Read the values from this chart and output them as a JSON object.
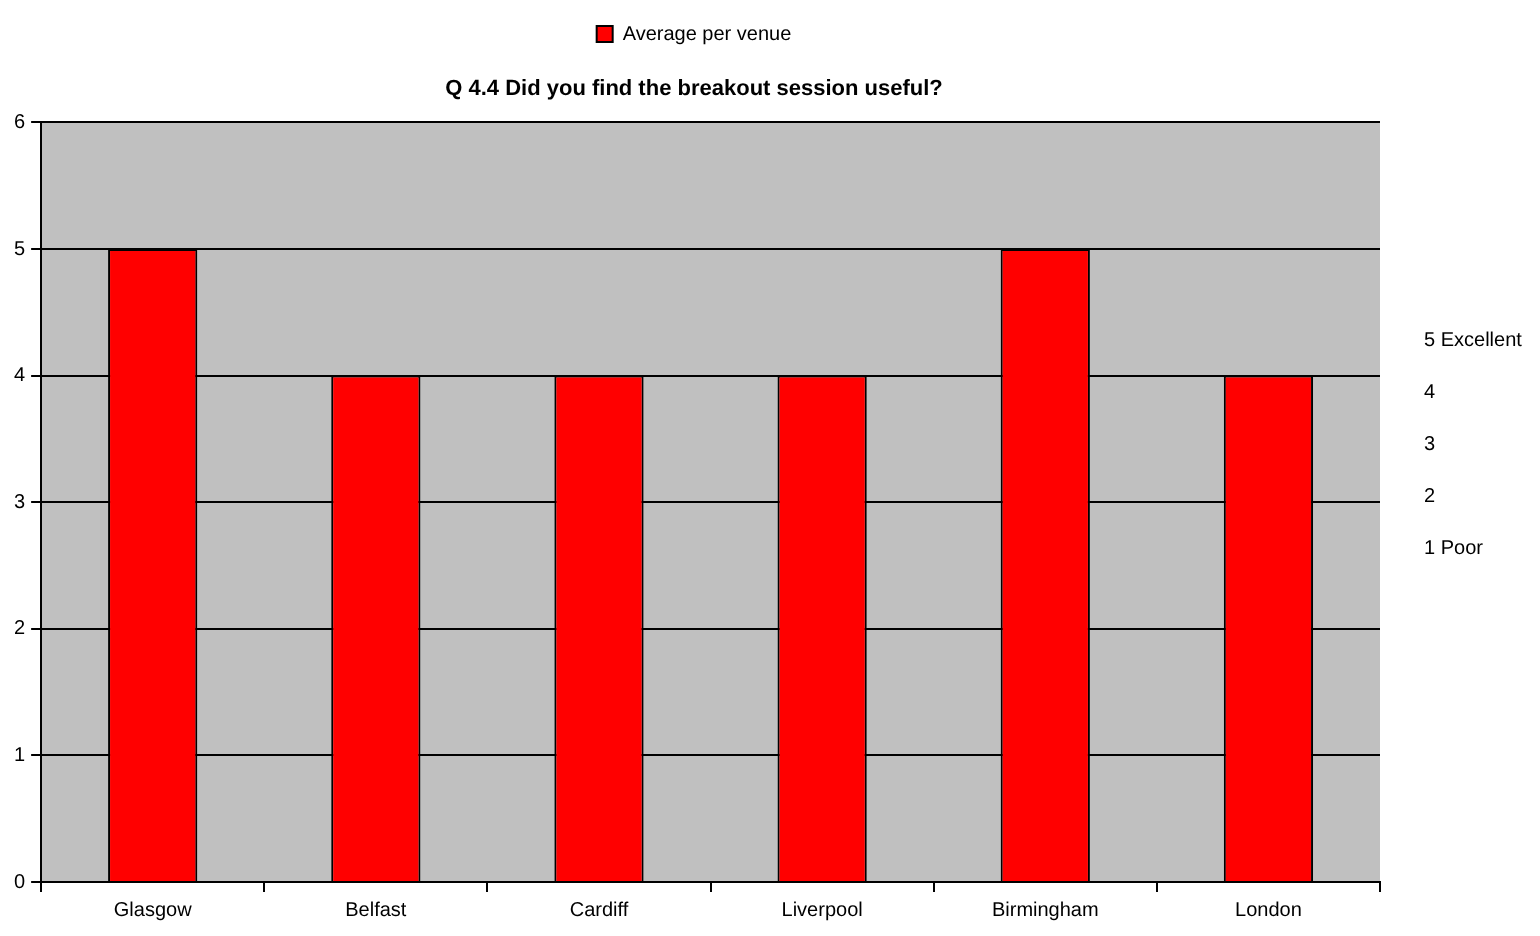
{
  "chart_data": {
    "type": "bar",
    "title": "Q 4.4 Did you find the breakout session useful?",
    "categories": [
      "Glasgow",
      "Belfast",
      "Cardiff",
      "Liverpool",
      "Birmingham",
      "London"
    ],
    "series": [
      {
        "name": "Average per venue",
        "color": "#ff0000",
        "values": [
          5,
          4,
          4,
          4,
          5,
          4
        ]
      }
    ],
    "ylim": [
      0,
      6
    ],
    "yticks": [
      0,
      1,
      2,
      3,
      4,
      5,
      6
    ],
    "grid": "y",
    "legend": "top",
    "annotations": [
      "5  Excellent",
      "4",
      "3",
      "2",
      "1  Poor"
    ]
  }
}
